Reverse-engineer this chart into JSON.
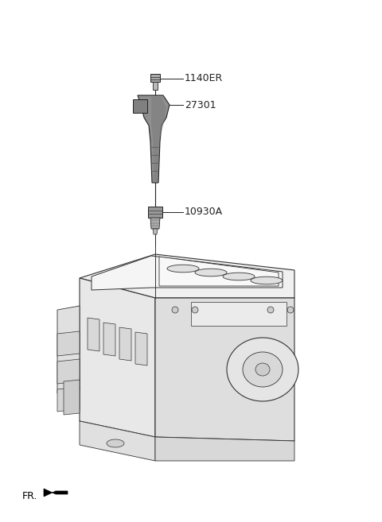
{
  "bg_color": "#ffffff",
  "fig_width": 4.8,
  "fig_height": 6.57,
  "dpi": 100,
  "parts": [
    {
      "id": "1140ER",
      "label": "1140ER"
    },
    {
      "id": "27301",
      "label": "27301"
    },
    {
      "id": "10930A",
      "label": "10930A"
    }
  ],
  "fr_label": "FR.",
  "line_color": "#222222",
  "text_color": "#222222",
  "coil_gray": "#909090",
  "coil_dark": "#707070",
  "spark_gray": "#888888",
  "engine_outline": "#333333",
  "engine_face_top": "#f0f0f0",
  "engine_face_left": "#e8e8e8",
  "engine_face_right": "#dedede"
}
